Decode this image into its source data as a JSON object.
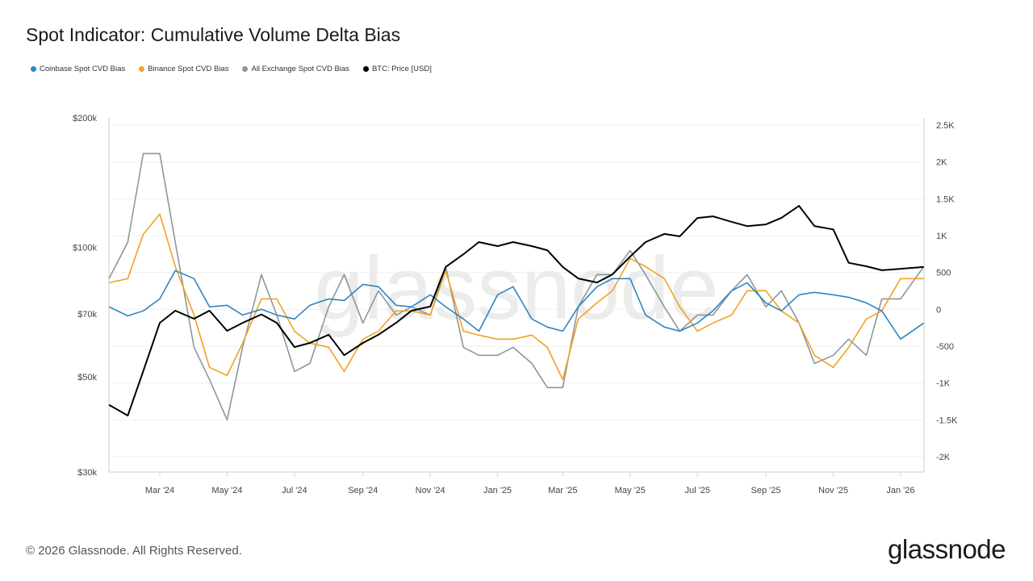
{
  "title": "Spot Indicator: Cumulative Volume Delta Bias",
  "footer": "© 2026 Glassnode. All Rights Reserved.",
  "logo": "glassnode",
  "watermark": "glassnode",
  "chart_data": {
    "type": "line",
    "title": "Spot Indicator: Cumulative Volume Delta Bias",
    "legend_position": "top-left",
    "grid": true,
    "x_ticks": [
      "Mar '24",
      "May '24",
      "Jul '24",
      "Sep '24",
      "Nov '24",
      "Jan '25",
      "Mar '25",
      "May '25",
      "Jul '25",
      "Sep '25",
      "Nov '25",
      "Jan '26"
    ],
    "x_tick_dates": [
      "2024-03-01",
      "2024-05-01",
      "2024-07-01",
      "2024-09-01",
      "2024-11-01",
      "2025-01-01",
      "2025-03-01",
      "2025-05-01",
      "2025-07-01",
      "2025-09-01",
      "2025-11-01",
      "2026-01-01"
    ],
    "left_axis": {
      "scale": "log",
      "range": [
        30000,
        200000
      ],
      "ticks": [
        "$200k",
        "$100k",
        "$70k",
        "$50k",
        "$30k"
      ],
      "tick_values": [
        200000,
        100000,
        70000,
        50000,
        30000
      ]
    },
    "right_axis": {
      "scale": "linear",
      "range": [
        -2000,
        2500
      ],
      "ticks": [
        "2.5K",
        "2K",
        "1.5K",
        "1K",
        "500",
        "0",
        "-500",
        "-1K",
        "-1.5K",
        "-2K"
      ],
      "tick_values": [
        2500,
        2000,
        1500,
        1000,
        500,
        0,
        -500,
        -1000,
        -1500,
        -2000
      ]
    },
    "x": [
      "2024-01-15",
      "2024-02-01",
      "2024-02-15",
      "2024-03-01",
      "2024-03-15",
      "2024-04-01",
      "2024-04-15",
      "2024-05-01",
      "2024-05-15",
      "2024-06-01",
      "2024-06-15",
      "2024-07-01",
      "2024-07-15",
      "2024-08-01",
      "2024-08-15",
      "2024-09-01",
      "2024-09-15",
      "2024-10-01",
      "2024-10-15",
      "2024-11-01",
      "2024-11-15",
      "2024-12-01",
      "2024-12-15",
      "2025-01-01",
      "2025-01-15",
      "2025-02-01",
      "2025-02-15",
      "2025-03-01",
      "2025-03-15",
      "2025-04-01",
      "2025-04-15",
      "2025-05-01",
      "2025-05-15",
      "2025-06-01",
      "2025-06-15",
      "2025-07-01",
      "2025-07-15",
      "2025-08-01",
      "2025-08-15",
      "2025-09-01",
      "2025-09-15",
      "2025-10-01",
      "2025-10-15",
      "2025-11-01",
      "2025-11-15",
      "2025-12-01",
      "2025-12-15",
      "2026-01-01",
      "2026-01-22"
    ],
    "series": [
      {
        "name": "Coinbase Spot CVD Bias",
        "axis": "right",
        "color": "#2f86c0",
        "values": [
          33,
          -88,
          -22,
          142,
          526,
          416,
          33,
          55,
          -77,
          0,
          -77,
          -131,
          55,
          142,
          120,
          339,
          307,
          55,
          33,
          197,
          33,
          -131,
          -296,
          197,
          307,
          -131,
          -241,
          -296,
          33,
          307,
          416,
          416,
          -77,
          -241,
          -296,
          -186,
          -22,
          252,
          361,
          88,
          -22,
          197,
          230,
          197,
          164,
          88,
          -22,
          -405,
          -186
        ]
      },
      {
        "name": "Binance Spot CVD Bias",
        "axis": "right",
        "color": "#f0a322",
        "values": [
          361,
          416,
          1018,
          1292,
          580,
          -77,
          -788,
          -898,
          -460,
          142,
          142,
          -296,
          -460,
          -515,
          -843,
          -405,
          -296,
          -22,
          -22,
          -77,
          526,
          -296,
          -350,
          -405,
          -405,
          -350,
          -515,
          -953,
          -131,
          88,
          252,
          690,
          580,
          416,
          33,
          -296,
          -186,
          -77,
          252,
          252,
          -22,
          -186,
          -624,
          -788,
          -515,
          -131,
          -22,
          416,
          416
        ]
      },
      {
        "name": "All Exchange Spot CVD Bias",
        "axis": "right",
        "color": "#8d979b",
        "values": [
          416,
          909,
          2113,
          2113,
          909,
          -515,
          -953,
          -1500,
          -515,
          471,
          -77,
          -843,
          -734,
          33,
          471,
          -186,
          252,
          -77,
          33,
          -77,
          580,
          -515,
          -624,
          -624,
          -515,
          -734,
          -1062,
          -1062,
          33,
          471,
          471,
          799,
          471,
          33,
          -296,
          -77,
          -77,
          252,
          471,
          33,
          252,
          -186,
          -734,
          -624,
          -405,
          -624,
          142,
          142,
          580
        ]
      },
      {
        "name": "BTC: Price [USD]",
        "axis": "left",
        "color": "#000000",
        "values": [
          43000,
          40600,
          51500,
          66700,
          71200,
          68200,
          71200,
          63900,
          66700,
          69800,
          66700,
          58600,
          59900,
          62600,
          56100,
          59900,
          62600,
          66700,
          71200,
          72800,
          90000,
          96300,
          102800,
          100600,
          102800,
          100600,
          98400,
          90000,
          84600,
          82800,
          86500,
          95100,
          102800,
          107400,
          106000,
          117000,
          118000,
          114600,
          112000,
          113000,
          117000,
          124800,
          112000,
          110000,
          92000,
          90300,
          88400,
          89100,
          90000
        ]
      }
    ]
  }
}
